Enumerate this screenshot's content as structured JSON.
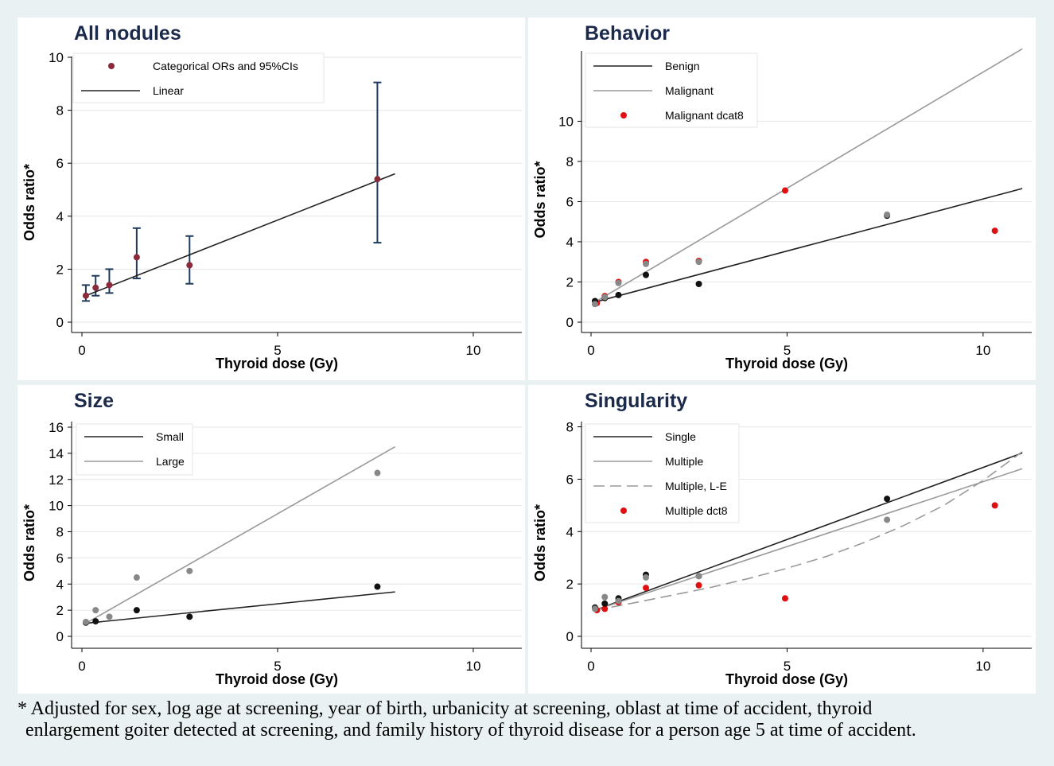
{
  "footnote": {
    "line1": "* Adjusted for sex, log age at screening, year of birth, urbanicity at screening, oblast at time of accident, thyroid",
    "line2": "enlargement goiter detected at screening, and family history of thyroid disease for a person age 5 at time of accident."
  },
  "chart_data": [
    {
      "type": "scatter",
      "title": "All nodules",
      "xlabel": "Thyroid dose (Gy)",
      "ylabel": "Odds ratio*",
      "xlim": [
        0,
        11.2
      ],
      "ylim": [
        0,
        10
      ],
      "xticks": [
        0,
        5,
        10
      ],
      "yticks": [
        0,
        2,
        4,
        6,
        8,
        10
      ],
      "grid": "horizontal",
      "legend": {
        "placement": "top-left",
        "entries": [
          "Categorical ORs and 95%CIs",
          "Linear"
        ]
      },
      "series": [
        {
          "name": "Categorical ORs and 95%CIs",
          "kind": "points_ci",
          "color": "#8b2a3a",
          "x": [
            0.1,
            0.35,
            0.7,
            1.4,
            2.75,
            7.55
          ],
          "y": [
            1.0,
            1.3,
            1.4,
            2.45,
            2.15,
            5.4
          ],
          "lower": [
            0.8,
            1.0,
            1.1,
            1.65,
            1.45,
            3.0
          ],
          "upper": [
            1.4,
            1.75,
            2.0,
            3.55,
            3.25,
            9.05
          ]
        },
        {
          "name": "Linear",
          "kind": "line",
          "color": "#222222",
          "x": [
            0.1,
            8.0
          ],
          "y": [
            1.0,
            5.6
          ]
        }
      ]
    },
    {
      "type": "scatter",
      "title": "Behavior",
      "xlabel": "Thyroid dose (Gy)",
      "ylabel": "Odds ratio*",
      "xlim": [
        0,
        11.2
      ],
      "ylim": [
        0,
        13.5
      ],
      "xticks": [
        0,
        5,
        10
      ],
      "yticks": [
        0,
        2,
        4,
        6,
        8,
        10
      ],
      "grid": "horizontal",
      "legend": {
        "placement": "top-left",
        "entries": [
          "Benign",
          "Malignant",
          "Malignant dcat8"
        ]
      },
      "series": [
        {
          "name": "Benign",
          "kind": "line",
          "color": "#222222",
          "x": [
            0.1,
            11.0
          ],
          "y": [
            1.0,
            6.65
          ]
        },
        {
          "name": "Malignant",
          "kind": "line",
          "color": "#9a9a9a",
          "x": [
            0.1,
            11.0
          ],
          "y": [
            1.0,
            13.6
          ]
        },
        {
          "name": "Malignant dcat8",
          "kind": "points",
          "color": "#e01010",
          "x": [
            0.15,
            0.35,
            0.7,
            1.4,
            2.75,
            4.95,
            10.3
          ],
          "y": [
            0.95,
            1.3,
            2.0,
            3.0,
            3.05,
            6.55,
            4.55
          ]
        },
        {
          "kind": "points",
          "color": "#111111",
          "x": [
            0.1,
            0.35,
            0.7,
            1.4,
            2.75,
            7.55
          ],
          "y": [
            1.05,
            1.2,
            1.35,
            2.35,
            1.9,
            5.3
          ]
        },
        {
          "kind": "points",
          "color": "#888888",
          "x": [
            0.1,
            0.35,
            0.7,
            1.4,
            2.75,
            7.55
          ],
          "y": [
            0.9,
            1.25,
            1.95,
            2.9,
            3.0,
            5.35
          ]
        }
      ]
    },
    {
      "type": "scatter",
      "title": "Size",
      "xlabel": "Thyroid dose (Gy)",
      "ylabel": "Odds ratio*",
      "xlim": [
        0,
        11.2
      ],
      "ylim": [
        0,
        16
      ],
      "xticks": [
        0,
        5,
        10
      ],
      "yticks": [
        0,
        2,
        4,
        6,
        8,
        10,
        12,
        14,
        16
      ],
      "grid": "horizontal",
      "legend": {
        "placement": "top-left",
        "entries": [
          "Small",
          "Large"
        ]
      },
      "series": [
        {
          "name": "Small",
          "kind": "line",
          "color": "#222222",
          "x": [
            0.1,
            8.0
          ],
          "y": [
            1.0,
            3.4
          ]
        },
        {
          "name": "Large",
          "kind": "line",
          "color": "#9a9a9a",
          "x": [
            0.1,
            8.0
          ],
          "y": [
            1.0,
            14.5
          ]
        },
        {
          "kind": "points",
          "color": "#111111",
          "x": [
            0.1,
            0.35,
            1.4,
            2.75,
            7.55
          ],
          "y": [
            1.05,
            1.15,
            2.0,
            1.5,
            3.8
          ]
        },
        {
          "kind": "points",
          "color": "#888888",
          "x": [
            0.1,
            0.35,
            0.7,
            1.4,
            2.75,
            7.55
          ],
          "y": [
            1.1,
            2.0,
            1.5,
            4.5,
            5.0,
            12.5
          ]
        }
      ]
    },
    {
      "type": "scatter",
      "title": "Singularity",
      "xlabel": "Thyroid dose (Gy)",
      "ylabel": "Odds ratio*",
      "xlim": [
        0,
        11.2
      ],
      "ylim": [
        0,
        8.2
      ],
      "xticks": [
        0,
        5,
        10
      ],
      "yticks": [
        0,
        2,
        4,
        6,
        8
      ],
      "grid": "horizontal",
      "legend": {
        "placement": "top-left",
        "entries": [
          "Single",
          "Multiple",
          "Multiple, L-E",
          "Multiple dct8"
        ]
      },
      "series": [
        {
          "name": "Single",
          "kind": "line",
          "color": "#222222",
          "x": [
            0.1,
            11.0
          ],
          "y": [
            1.0,
            7.0
          ]
        },
        {
          "name": "Multiple",
          "kind": "line",
          "color": "#9a9a9a",
          "x": [
            0.1,
            11.0
          ],
          "y": [
            1.0,
            6.4
          ]
        },
        {
          "name": "Multiple, L-E",
          "kind": "dashed",
          "color": "#9a9a9a",
          "x": [
            0.1,
            1.0,
            2.0,
            3.0,
            4.0,
            5.0,
            6.0,
            7.0,
            8.0,
            9.0,
            10.0,
            11.0
          ],
          "y": [
            1.0,
            1.25,
            1.55,
            1.85,
            2.2,
            2.6,
            3.05,
            3.6,
            4.25,
            5.0,
            5.95,
            7.05
          ]
        },
        {
          "name": "Multiple dct8",
          "kind": "points",
          "color": "#e01010",
          "x": [
            0.15,
            0.35,
            0.7,
            1.4,
            2.75,
            4.95,
            10.3
          ],
          "y": [
            1.0,
            1.05,
            1.3,
            1.85,
            1.95,
            1.45,
            5.0
          ]
        },
        {
          "kind": "points",
          "color": "#111111",
          "x": [
            0.1,
            0.35,
            0.7,
            1.4,
            2.75,
            7.55
          ],
          "y": [
            1.1,
            1.25,
            1.45,
            2.35,
            2.3,
            5.25
          ]
        },
        {
          "kind": "points",
          "color": "#888888",
          "x": [
            0.1,
            0.35,
            0.7,
            1.4,
            2.75,
            7.55
          ],
          "y": [
            1.05,
            1.5,
            1.35,
            2.25,
            2.3,
            4.45
          ]
        }
      ]
    }
  ]
}
